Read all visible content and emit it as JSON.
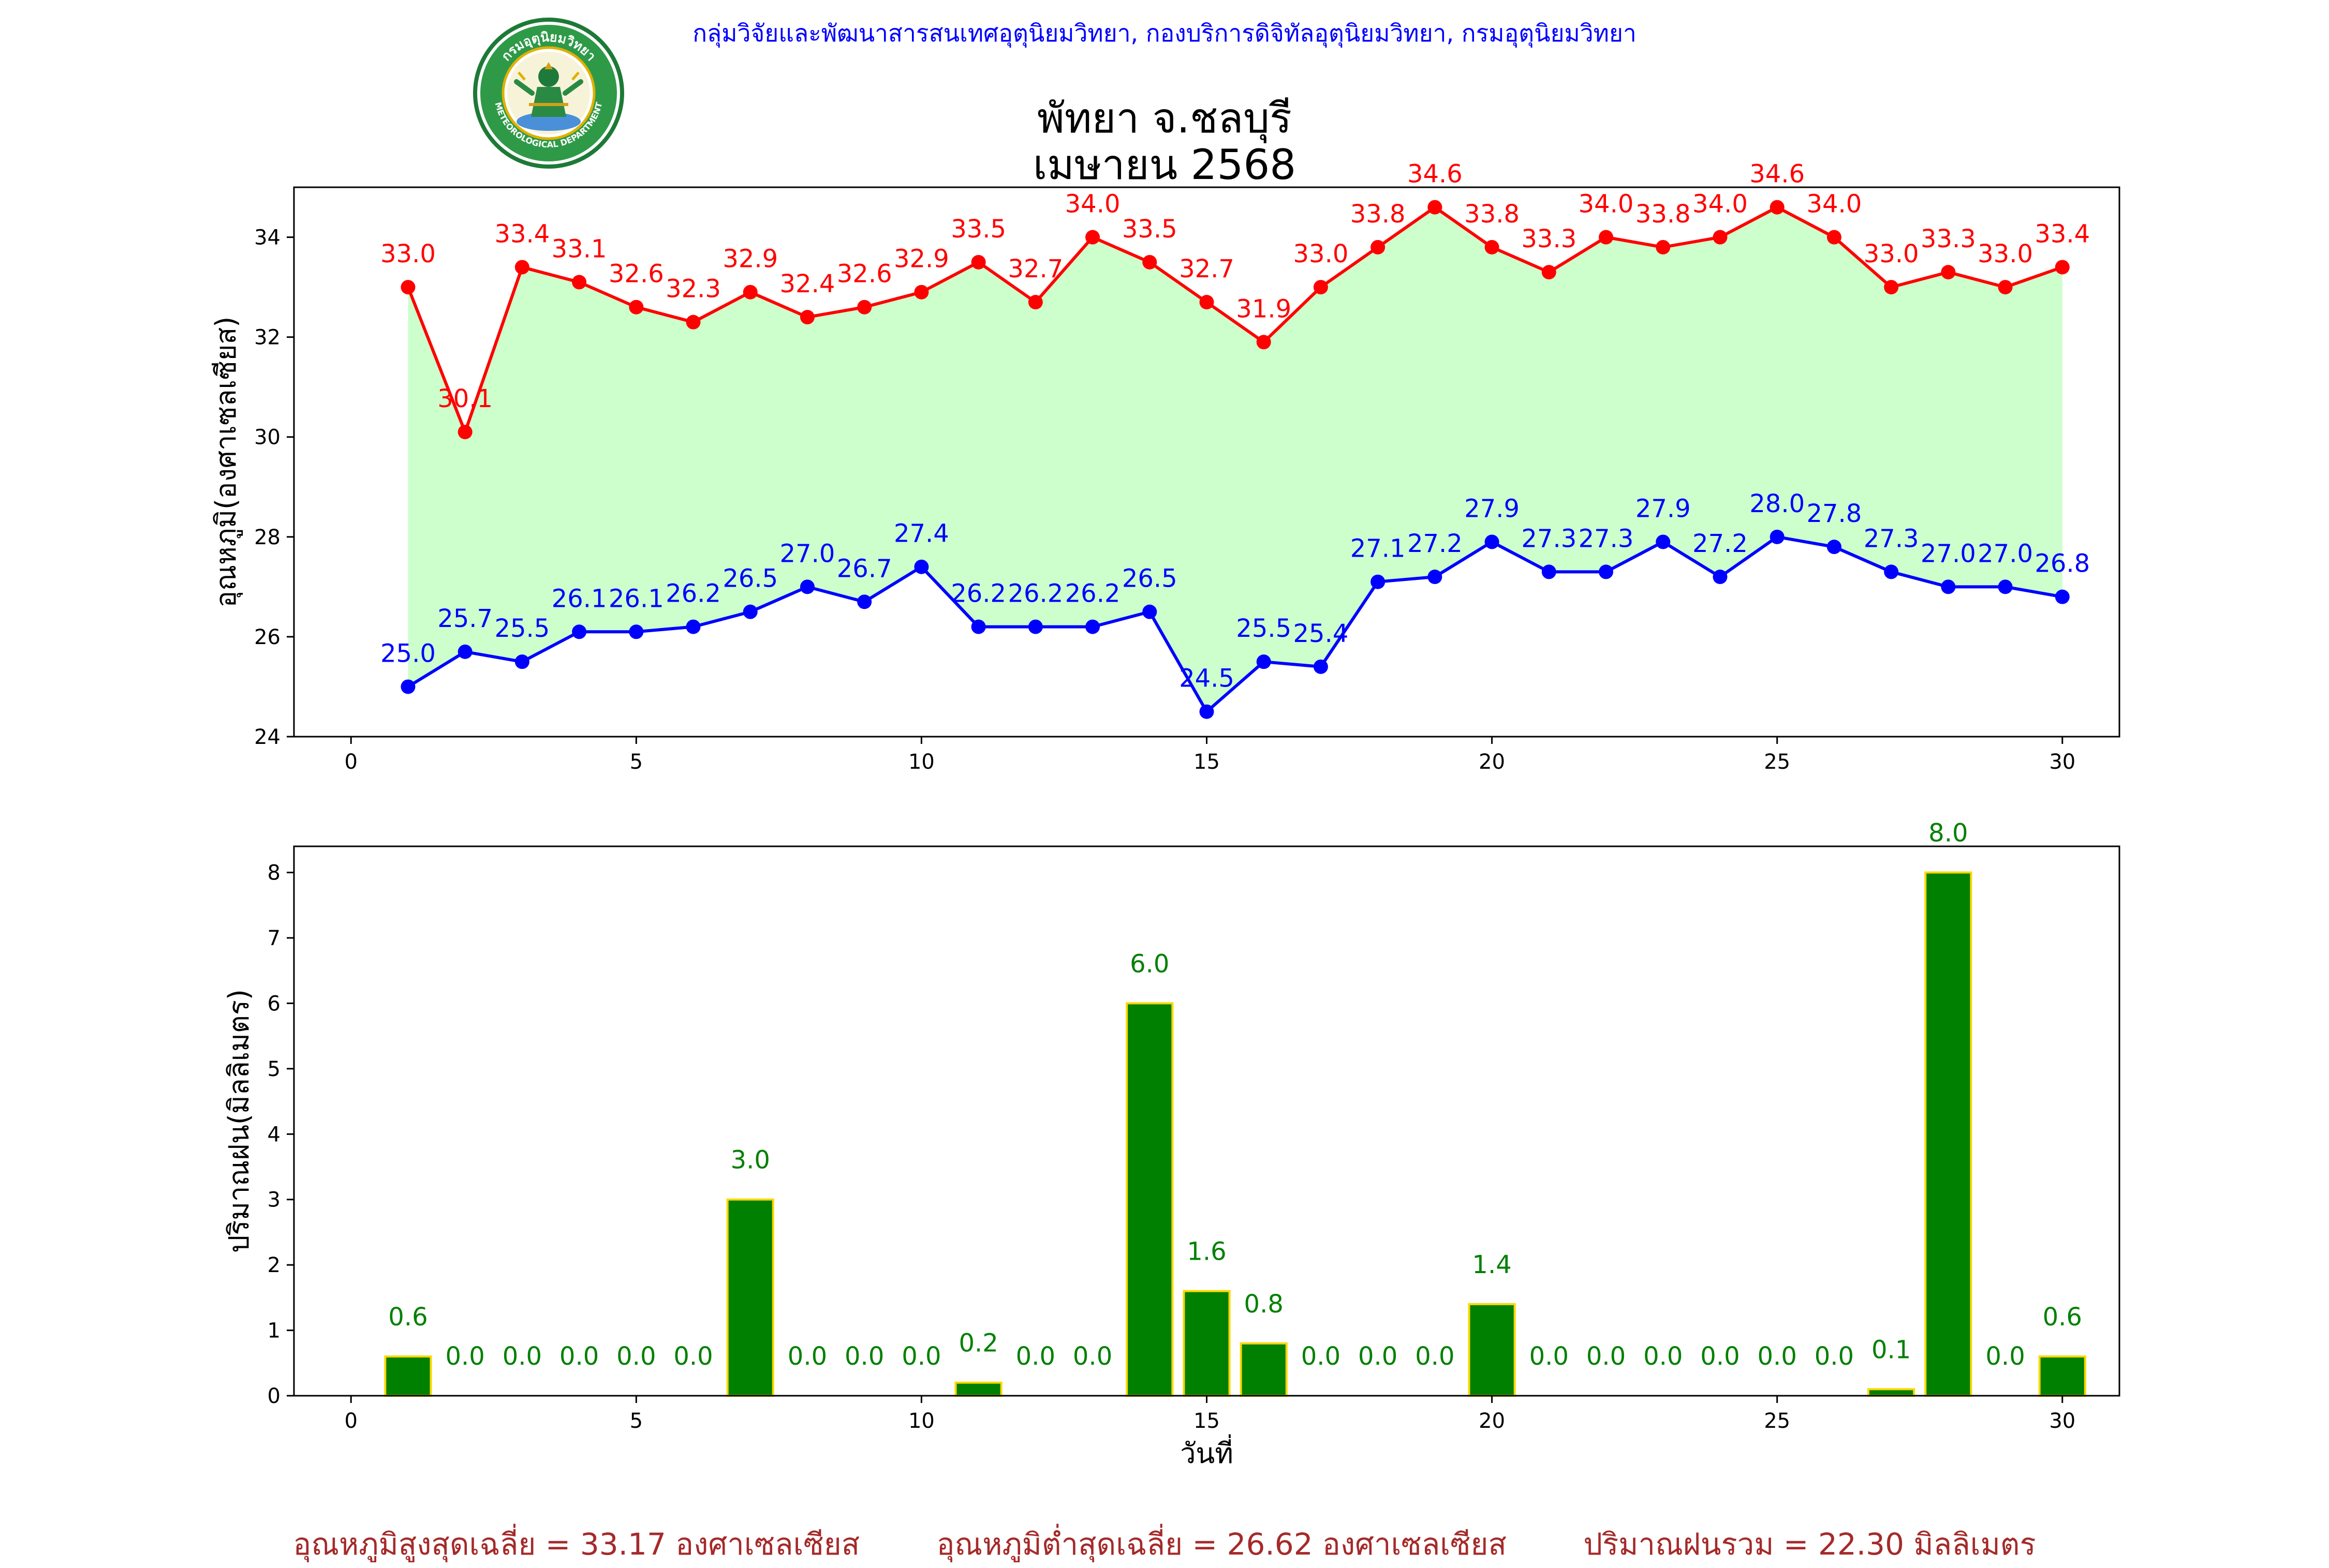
{
  "header": {
    "org_text": "กลุ่มวิจัยและพัฒนาสารสนเทศอุตุนิยมวิทยา, กองบริการดิจิทัลอุตุนิยมวิทยา, กรมอุตุนิยมวิทยา",
    "logo_top_text": "กรมอุตุนิยมวิทยา",
    "logo_bottom_text": "METEOROLOGICAL DEPARTMENT"
  },
  "title_line1": "พัทยา จ.ชลบุรี",
  "title_line2": "เมษายน 2568",
  "footer": {
    "avg_max": "อุณหภูมิสูงสุดเฉลี่ย = 33.17 องศาเซลเซียส",
    "avg_min": "อุณหภูมิต่ำสุดเฉลี่ย = 26.62 องศาเซลเซียส",
    "total_rain": "ปริมาณฝนรวม = 22.30 มิลลิเมตร"
  },
  "colors": {
    "max_line": "#ff0000",
    "min_line": "#0000ff",
    "fill": "#ccffcc",
    "rain_bar": "#008000",
    "rain_edge": "#ffd700",
    "rain_label": "#008000",
    "footer_text": "#a52a2a",
    "header_text": "#0000ff"
  },
  "chart_data": [
    {
      "type": "line",
      "ylabel": "อุณหภูมิ(องศาเซลเซียส)",
      "xlabel": "",
      "xlim": [
        -1,
        31
      ],
      "ylim": [
        24,
        35
      ],
      "xticks": [
        0,
        5,
        10,
        15,
        20,
        25,
        30
      ],
      "yticks": [
        24,
        26,
        28,
        30,
        32,
        34
      ],
      "x": [
        1,
        2,
        3,
        4,
        5,
        6,
        7,
        8,
        9,
        10,
        11,
        12,
        13,
        14,
        15,
        16,
        17,
        18,
        19,
        20,
        21,
        22,
        23,
        24,
        25,
        26,
        27,
        28,
        29,
        30
      ],
      "series": [
        {
          "role": "max",
          "values": [
            33.0,
            30.1,
            33.4,
            33.1,
            32.6,
            32.3,
            32.9,
            32.4,
            32.6,
            32.9,
            33.5,
            32.7,
            34.0,
            33.5,
            32.7,
            31.9,
            33.0,
            33.8,
            34.6,
            33.8,
            33.3,
            34.0,
            33.8,
            34.0,
            34.6,
            34.0,
            33.0,
            33.3,
            33.0,
            33.4
          ]
        },
        {
          "role": "min",
          "values": [
            25.0,
            25.7,
            25.5,
            26.1,
            26.1,
            26.2,
            26.5,
            27.0,
            26.7,
            27.4,
            26.2,
            26.2,
            26.2,
            26.5,
            24.5,
            25.5,
            25.4,
            27.1,
            27.2,
            27.9,
            27.3,
            27.3,
            27.9,
            27.2,
            28.0,
            27.8,
            27.3,
            27.0,
            27.0,
            26.8
          ]
        }
      ]
    },
    {
      "type": "bar",
      "ylabel": "ปริมาณฝน(มิลลิเมตร)",
      "xlabel": "วันที่",
      "xlim": [
        -1,
        31
      ],
      "ylim": [
        0,
        8.4
      ],
      "xticks": [
        0,
        5,
        10,
        15,
        20,
        25,
        30
      ],
      "yticks": [
        0,
        1,
        2,
        3,
        4,
        5,
        6,
        7,
        8
      ],
      "x": [
        1,
        2,
        3,
        4,
        5,
        6,
        7,
        8,
        9,
        10,
        11,
        12,
        13,
        14,
        15,
        16,
        17,
        18,
        19,
        20,
        21,
        22,
        23,
        24,
        25,
        26,
        27,
        28,
        29,
        30
      ],
      "values": [
        0.6,
        0.0,
        0.0,
        0.0,
        0.0,
        0.0,
        3.0,
        0.0,
        0.0,
        0.0,
        0.2,
        0.0,
        0.0,
        6.0,
        1.6,
        0.8,
        0.0,
        0.0,
        0.0,
        1.4,
        0.0,
        0.0,
        0.0,
        0.0,
        0.0,
        0.0,
        0.1,
        8.0,
        0.0,
        0.6
      ]
    }
  ]
}
